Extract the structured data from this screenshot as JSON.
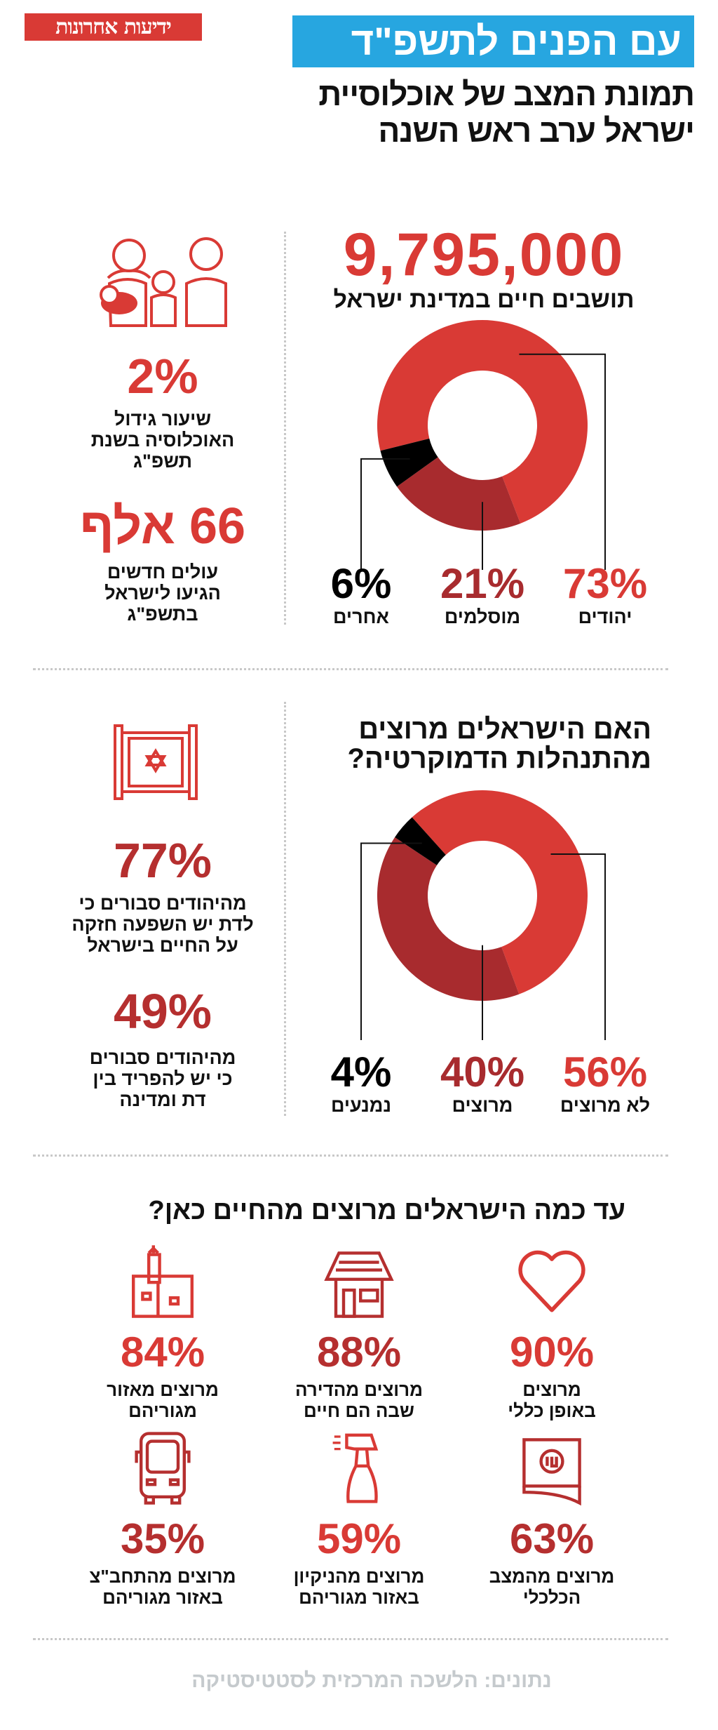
{
  "header": {
    "logo": "ידיעות אחרונות",
    "title": "עם הפנים לתשפ\"ד",
    "subtitle_line1": "תמונת המצב של אוכלוסיית",
    "subtitle_line2": "ישראל ערב ראש השנה"
  },
  "population": {
    "total": "9,795,000",
    "total_label": "תושבים חיים במדינת ישראל",
    "growth_value": "2%",
    "growth_label": [
      "שיעור גידול",
      "האוכלוסיה בשנת",
      "תשפ\"ג"
    ],
    "immigrants_value": "66 אלף",
    "immigrants_label": [
      "עולים חדשים",
      "הגיעו לישראל",
      "בתשפ\"ג"
    ]
  },
  "democracy": {
    "title_line1": "האם הישראלים מרוצים",
    "title_line2": "מהתנהלות הדמוקרטיה?",
    "religion_value": "77%",
    "religion_label": [
      "מהיהודים סבורים כי",
      "לדת יש השפעה חזקה",
      "על החיים בישראל"
    ],
    "separation_value": "49%",
    "separation_label": [
      "מהיהודים סבורים",
      "כי יש להפריד בין",
      "דת ומדינה"
    ]
  },
  "satisfaction": {
    "title": "עד כמה הישראלים מרוצים מהחיים כאן?",
    "items": [
      {
        "value": "90%",
        "label": [
          "מרוצים",
          "באופן כללי"
        ],
        "icon": "heart-icon"
      },
      {
        "value": "88%",
        "label": [
          "מרוצים מהדירה",
          "שבה הם חיים"
        ],
        "icon": "house-icon"
      },
      {
        "value": "84%",
        "label": [
          "מרוצים מאזור",
          "מגוריהם"
        ],
        "icon": "city-icon"
      },
      {
        "value": "63%",
        "label": [
          "מרוצים מהמצב",
          "הכלכלי"
        ],
        "icon": "shekel-bills-icon"
      },
      {
        "value": "59%",
        "label": [
          "מרוצים מהניקיון",
          "באזור מגוריהם"
        ],
        "icon": "spray-bottle-icon"
      },
      {
        "value": "35%",
        "label": [
          "מרוצים מהתחב\"צ",
          "באזור מגוריהם"
        ],
        "icon": "bus-icon"
      }
    ]
  },
  "source": "נתונים: הלשכה המרכזית לסטטיסטיקה",
  "colors": {
    "red": "#d93a35",
    "dark_red": "#a82b2e",
    "black": "#000000",
    "blue": "#27a6e0",
    "gray": "#c5cacd"
  },
  "chart_data": [
    {
      "type": "pie",
      "title": "תושבים חיים במדינת ישראל",
      "categories": [
        "יהודים",
        "מוסלמים",
        "אחרים"
      ],
      "values": [
        73,
        21,
        6
      ],
      "labels": [
        "73%",
        "21%",
        "6%"
      ],
      "colors": [
        "#d93a35",
        "#a82b2e",
        "#000000"
      ]
    },
    {
      "type": "pie",
      "title": "האם הישראלים מרוצים מהתנהלות הדמוקרטיה?",
      "categories": [
        "לא מרוצים",
        "מרוצים",
        "נמנעים"
      ],
      "values": [
        56,
        40,
        4
      ],
      "labels": [
        "56%",
        "40%",
        "4%"
      ],
      "colors": [
        "#d93a35",
        "#a82b2e",
        "#000000"
      ]
    }
  ]
}
